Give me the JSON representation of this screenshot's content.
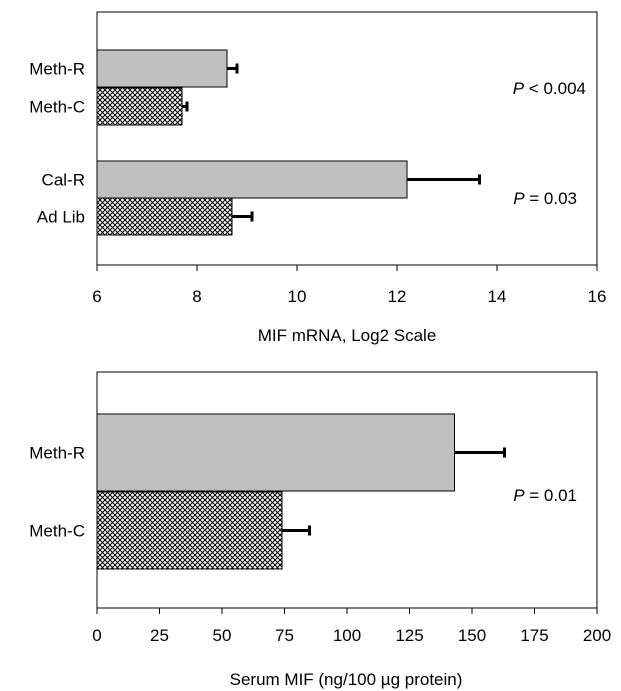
{
  "patterns": {
    "solid_fill": "#c0c0c0",
    "hatch_bg": "#ffffff",
    "hatch_line": "#000000"
  },
  "chart_data": [
    {
      "type": "bar",
      "orientation": "horizontal",
      "categories": [
        "Meth-R",
        "Meth-C",
        "Cal-R",
        "Ad Lib"
      ],
      "values": [
        8.6,
        7.7,
        12.2,
        8.7
      ],
      "errors": [
        0.2,
        0.1,
        1.45,
        0.4
      ],
      "fills": [
        "solid",
        "hatch",
        "solid",
        "hatch"
      ],
      "xlabel": "MIF mRNA, Log2 Scale",
      "xlim": [
        6,
        16
      ],
      "xticks": [
        "6",
        "8",
        "10",
        "12",
        "14",
        "16"
      ],
      "grid": false,
      "annotations": [
        {
          "prefix": "P",
          "text": " < 0.004"
        },
        {
          "prefix": "P",
          "text": " = 0.03"
        }
      ]
    },
    {
      "type": "bar",
      "orientation": "horizontal",
      "categories": [
        "Meth-R",
        "Meth-C"
      ],
      "values": [
        143,
        74
      ],
      "errors": [
        20,
        11
      ],
      "fills": [
        "solid",
        "hatch"
      ],
      "xlabel": "Serum MIF (ng/100 µg protein)",
      "xlim": [
        0,
        200
      ],
      "xticks": [
        "0",
        "25",
        "50",
        "75",
        "100",
        "125",
        "150",
        "175",
        "200"
      ],
      "grid": false,
      "annotations": [
        {
          "prefix": "P",
          "text": " = 0.01"
        }
      ]
    }
  ]
}
